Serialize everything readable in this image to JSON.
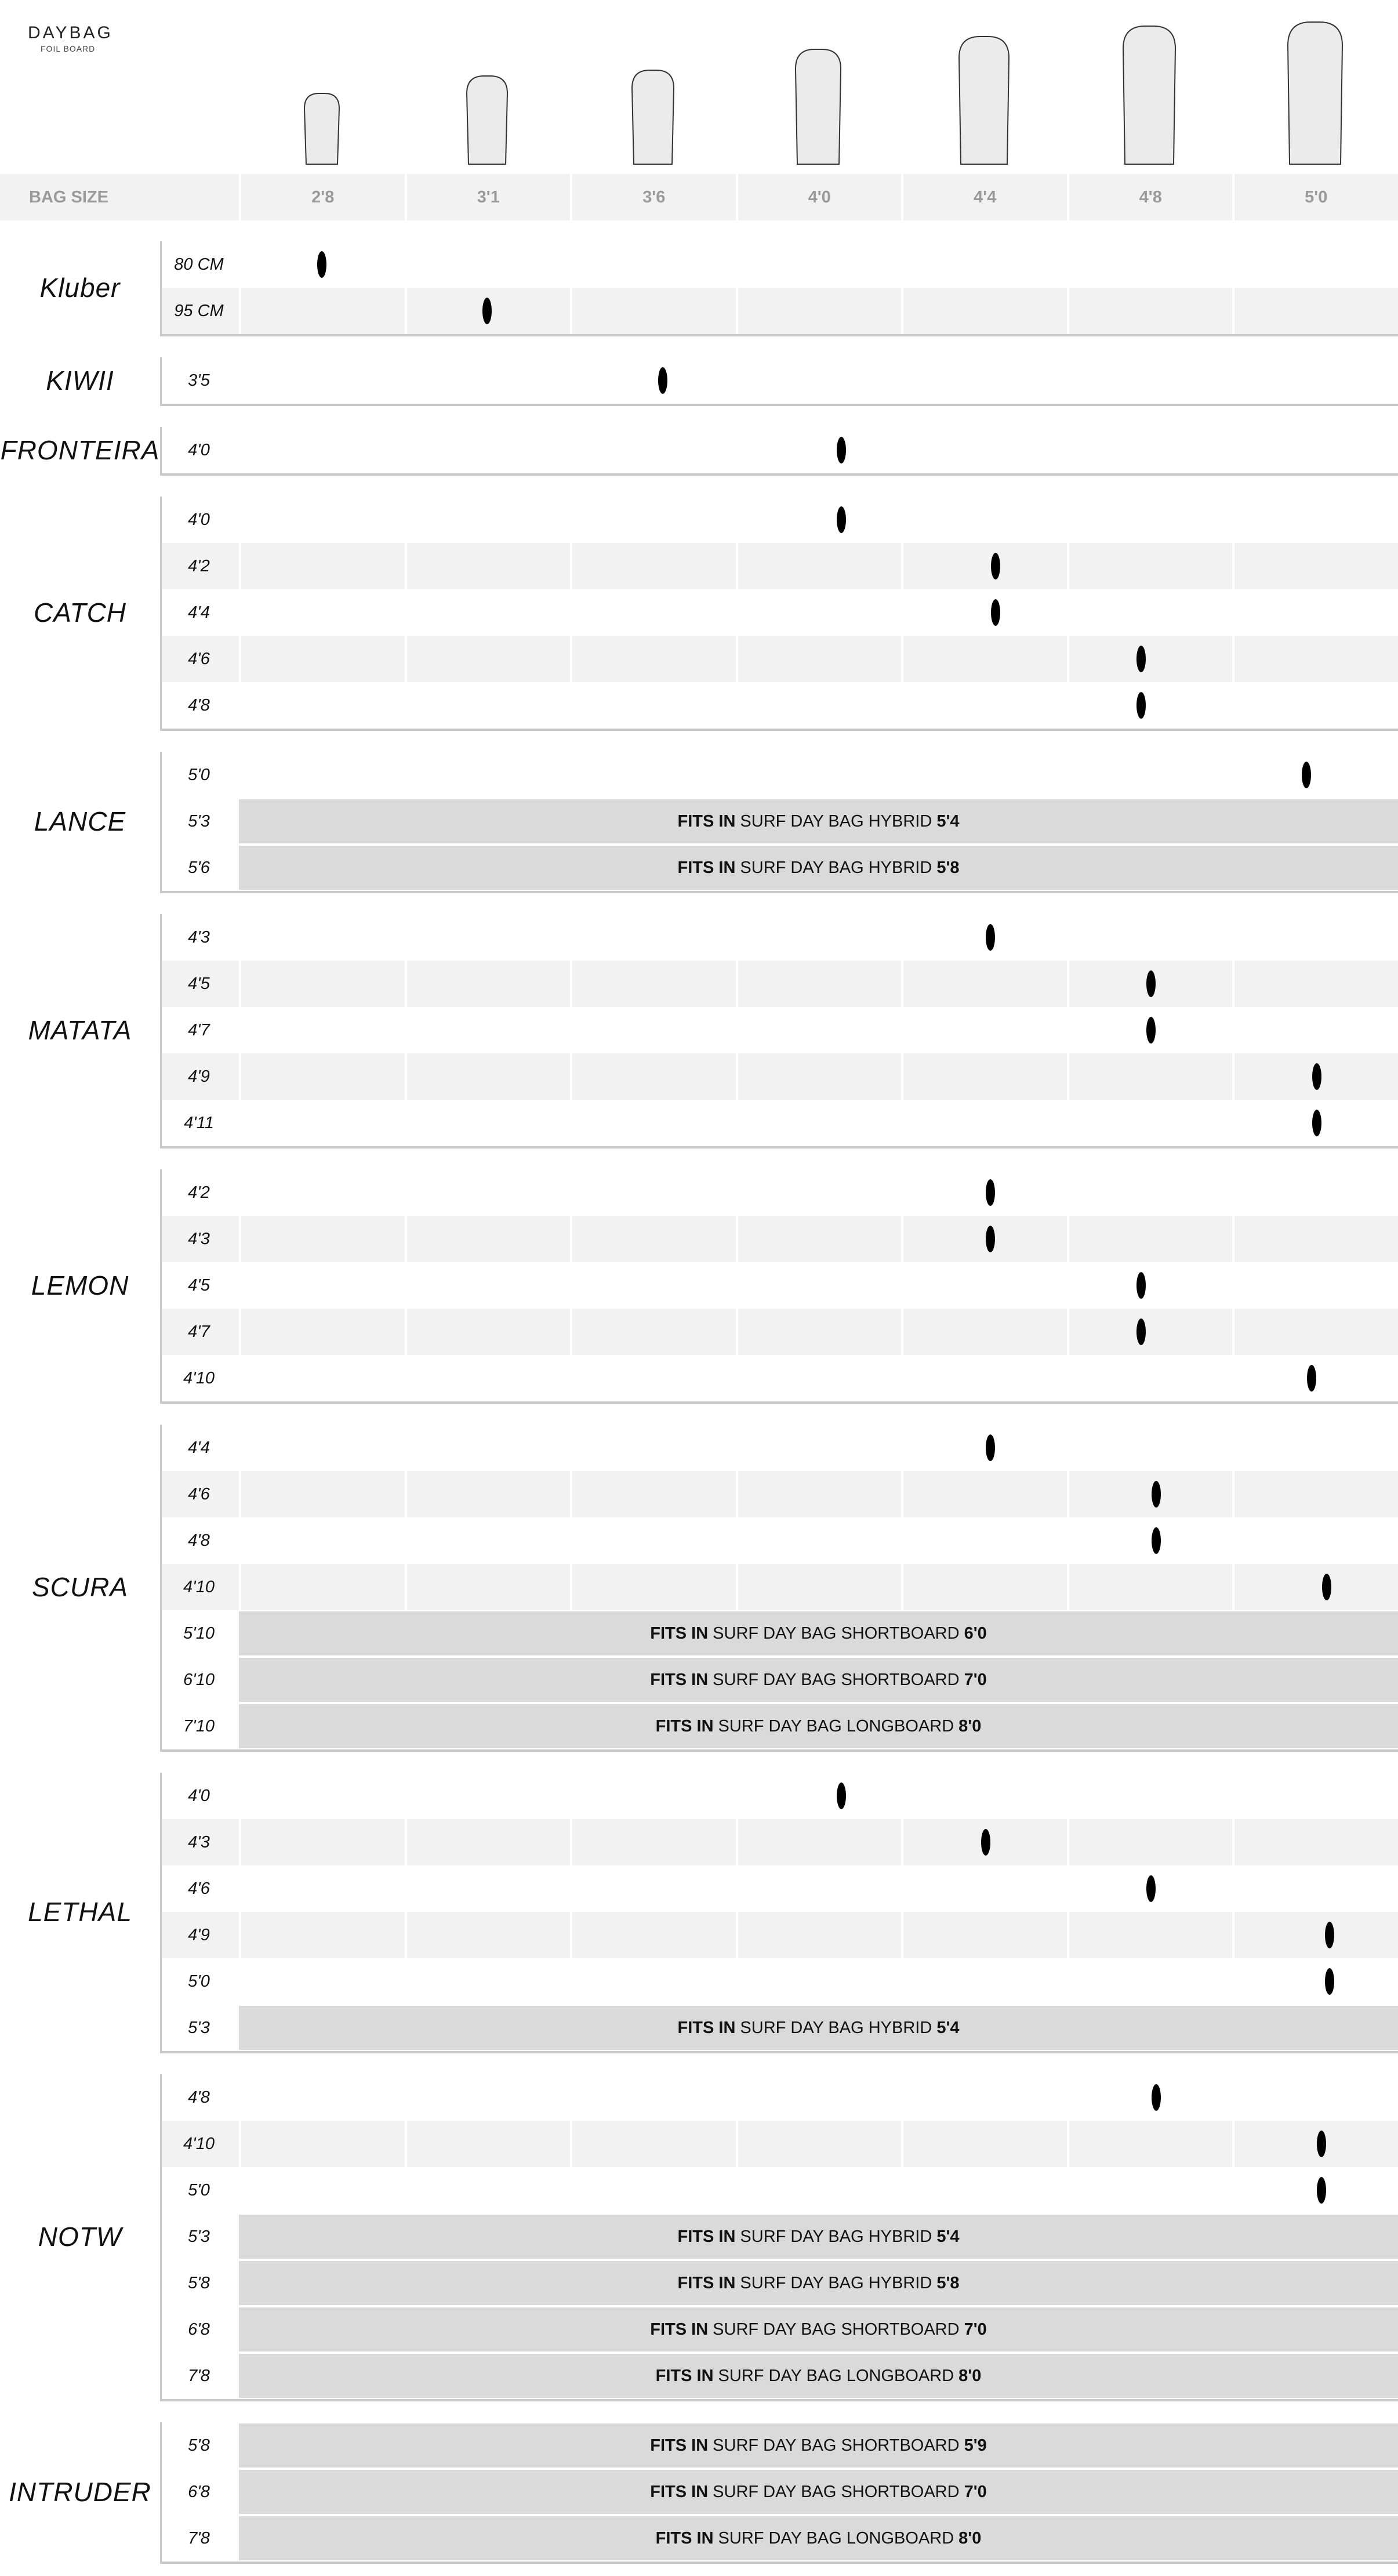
{
  "brand": {
    "title": "DAYBAG",
    "subtitle": "FOIL BOARD"
  },
  "header": {
    "label": "BAG SIZE",
    "bag_sizes": [
      "2'8",
      "3'1",
      "3'6",
      "4'0",
      "4'4",
      "4'8",
      "5'0"
    ]
  },
  "colors": {
    "zebra": "#f2f2f2",
    "banner": "#dadada",
    "header_band": "#f2f2f2",
    "separator": "#c8c8c8",
    "marker": "#000000"
  },
  "fits_prefix": "FITS IN",
  "groups": [
    {
      "name": "Kluber",
      "rows": [
        {
          "size": "80 CM",
          "col": 0,
          "offset": 0.5
        },
        {
          "size": "95 CM",
          "col": 1,
          "offset": 0.5
        }
      ]
    },
    {
      "name": "KIWII",
      "rows": [
        {
          "size": "3'5",
          "col": 2,
          "offset": 0.56
        }
      ]
    },
    {
      "name": "FRONTEIRA",
      "rows": [
        {
          "size": "4'0",
          "col": 3,
          "offset": 0.64
        }
      ]
    },
    {
      "name": "CATCH",
      "rows": [
        {
          "size": "4'0",
          "col": 3,
          "offset": 0.64
        },
        {
          "size": "4'2",
          "col": 4,
          "offset": 0.57
        },
        {
          "size": "4'4",
          "col": 4,
          "offset": 0.57
        },
        {
          "size": "4'6",
          "col": 5,
          "offset": 0.45
        },
        {
          "size": "4'8",
          "col": 5,
          "offset": 0.45
        }
      ]
    },
    {
      "name": "LANCE",
      "rows": [
        {
          "size": "5'0",
          "col": 6,
          "offset": 0.45
        },
        {
          "size": "5'3",
          "fits_bag": "SURF DAY BAG HYBRID",
          "fits_size": "5'4"
        },
        {
          "size": "5'6",
          "fits_bag": "SURF DAY BAG HYBRID",
          "fits_size": "5'8"
        }
      ]
    },
    {
      "name": "MATATA",
      "rows": [
        {
          "size": "4'3",
          "col": 4,
          "offset": 0.54
        },
        {
          "size": "4'5",
          "col": 5,
          "offset": 0.51
        },
        {
          "size": "4'7",
          "col": 5,
          "offset": 0.51
        },
        {
          "size": "4'9",
          "col": 6,
          "offset": 0.51
        },
        {
          "size": "4'11",
          "col": 6,
          "offset": 0.51
        }
      ]
    },
    {
      "name": "LEMON",
      "rows": [
        {
          "size": "4'2",
          "col": 4,
          "offset": 0.54
        },
        {
          "size": "4'3",
          "col": 4,
          "offset": 0.54
        },
        {
          "size": "4'5",
          "col": 5,
          "offset": 0.45
        },
        {
          "size": "4'7",
          "col": 5,
          "offset": 0.45
        },
        {
          "size": "4'10",
          "col": 6,
          "offset": 0.48
        }
      ]
    },
    {
      "name": "SCURA",
      "rows": [
        {
          "size": "4'4",
          "col": 4,
          "offset": 0.54
        },
        {
          "size": "4'6",
          "col": 5,
          "offset": 0.54
        },
        {
          "size": "4'8",
          "col": 5,
          "offset": 0.54
        },
        {
          "size": "4'10",
          "col": 6,
          "offset": 0.57
        },
        {
          "size": "5'10",
          "fits_bag": "SURF DAY BAG SHORTBOARD",
          "fits_size": "6'0"
        },
        {
          "size": "6'10",
          "fits_bag": "SURF DAY BAG SHORTBOARD",
          "fits_size": "7'0"
        },
        {
          "size": "7'10",
          "fits_bag": "SURF DAY BAG LONGBOARD",
          "fits_size": "8'0"
        }
      ]
    },
    {
      "name": "LETHAL",
      "rows": [
        {
          "size": "4'0",
          "col": 3,
          "offset": 0.64
        },
        {
          "size": "4'3",
          "col": 4,
          "offset": 0.51
        },
        {
          "size": "4'6",
          "col": 5,
          "offset": 0.51
        },
        {
          "size": "4'9",
          "col": 6,
          "offset": 0.59
        },
        {
          "size": "5'0",
          "col": 6,
          "offset": 0.59
        },
        {
          "size": "5'3",
          "fits_bag": "SURF DAY BAG HYBRID",
          "fits_size": "5'4"
        }
      ]
    },
    {
      "name": "NOTW",
      "rows": [
        {
          "size": "4'8",
          "col": 5,
          "offset": 0.54
        },
        {
          "size": "4'10",
          "col": 6,
          "offset": 0.54
        },
        {
          "size": "5'0",
          "col": 6,
          "offset": 0.54
        },
        {
          "size": "5'3",
          "fits_bag": "SURF DAY BAG HYBRID",
          "fits_size": "5'4"
        },
        {
          "size": "5'8",
          "fits_bag": "SURF DAY BAG HYBRID",
          "fits_size": "5'8"
        },
        {
          "size": "6'8",
          "fits_bag": "SURF DAY BAG SHORTBOARD",
          "fits_size": "7'0"
        },
        {
          "size": "7'8",
          "fits_bag": "SURF DAY BAG LONGBOARD",
          "fits_size": "8'0"
        }
      ]
    },
    {
      "name": "INTRUDER",
      "rows": [
        {
          "size": "5'8",
          "fits_bag": "SURF DAY BAG SHORTBOARD",
          "fits_size": "5'9"
        },
        {
          "size": "6'8",
          "fits_bag": "SURF DAY BAG SHORTBOARD",
          "fits_size": "7'0"
        },
        {
          "size": "7'8",
          "fits_bag": "SURF DAY BAG LONGBOARD",
          "fits_size": "8'0"
        }
      ]
    }
  ]
}
